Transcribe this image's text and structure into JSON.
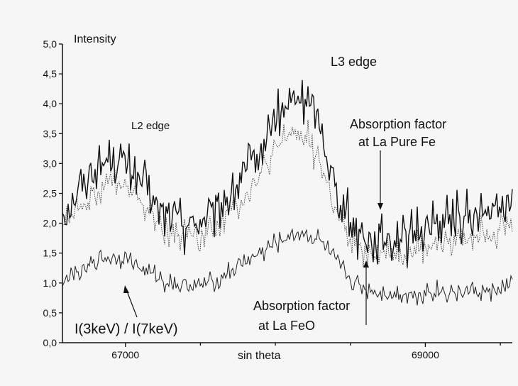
{
  "chart_data": {
    "type": "line",
    "ylabel": "Intensity",
    "xlabel": "sin theta",
    "xlim": [
      66580,
      69580
    ],
    "ylim": [
      0,
      5
    ],
    "x_ticks": [
      67000,
      69000
    ],
    "y_ticks": [
      "0,0",
      "0,5",
      "1,0",
      "1,5",
      "2,0",
      "2,5",
      "3,0",
      "3,5",
      "4,0",
      "4,5",
      "5,0"
    ],
    "grid": false,
    "annotations": {
      "l2_edge": "L2 edge",
      "l3_edge": "L3 edge",
      "abs_fe_line1": "Absorption factor",
      "abs_fe_line2": "at La Pure Fe",
      "abs_feo_line1": "Absorption factor",
      "abs_feo_line2": "at La FeO",
      "ratio_label": "I(3keV) / I(7keV)"
    },
    "series": [
      {
        "style": "solid",
        "x": [
          66580,
          66700,
          66800,
          66900,
          67000,
          67100,
          67200,
          67300,
          67400,
          67500,
          67600,
          67700,
          67800,
          67900,
          68000,
          68100,
          68200,
          68300,
          68400,
          68500,
          68600,
          68700,
          68800,
          68900,
          69000,
          69100,
          69200,
          69300,
          69400,
          69500,
          69580
        ],
        "values": [
          2.2,
          2.6,
          2.9,
          3.1,
          3.0,
          2.7,
          2.3,
          2.1,
          2.0,
          2.0,
          2.2,
          2.5,
          2.8,
          3.2,
          3.7,
          4.0,
          4.1,
          3.6,
          2.6,
          2.0,
          1.8,
          1.75,
          1.75,
          1.8,
          1.9,
          2.0,
          2.05,
          2.1,
          2.15,
          2.2,
          2.3
        ]
      },
      {
        "style": "dotted",
        "x": [
          66580,
          66700,
          66800,
          66900,
          67000,
          67100,
          67200,
          67300,
          67400,
          67500,
          67600,
          67700,
          67800,
          67900,
          68000,
          68100,
          68200,
          68300,
          68400,
          68500,
          68600,
          68700,
          68800,
          68900,
          69000,
          69100,
          69200,
          69300,
          69400,
          69500,
          69580
        ],
        "values": [
          2.0,
          2.3,
          2.5,
          2.7,
          2.6,
          2.4,
          2.05,
          1.85,
          1.8,
          1.8,
          1.95,
          2.2,
          2.5,
          2.8,
          3.2,
          3.5,
          3.5,
          3.0,
          2.2,
          1.7,
          1.55,
          1.5,
          1.5,
          1.55,
          1.6,
          1.7,
          1.75,
          1.8,
          1.85,
          1.9,
          1.95
        ]
      },
      {
        "style": "solid-thin",
        "x": [
          66580,
          66700,
          66800,
          66900,
          67000,
          67100,
          67200,
          67300,
          67400,
          67500,
          67600,
          67700,
          67800,
          67900,
          68000,
          68100,
          68200,
          68300,
          68400,
          68500,
          68600,
          68700,
          68800,
          68900,
          69000,
          69100,
          69200,
          69300,
          69400,
          69500,
          69580
        ],
        "values": [
          1.0,
          1.2,
          1.35,
          1.45,
          1.4,
          1.25,
          1.1,
          1.0,
          0.95,
          0.95,
          1.05,
          1.2,
          1.35,
          1.5,
          1.65,
          1.8,
          1.85,
          1.7,
          1.35,
          1.05,
          0.9,
          0.85,
          0.82,
          0.82,
          0.85,
          0.85,
          0.85,
          0.85,
          0.85,
          0.9,
          0.95
        ]
      }
    ]
  }
}
